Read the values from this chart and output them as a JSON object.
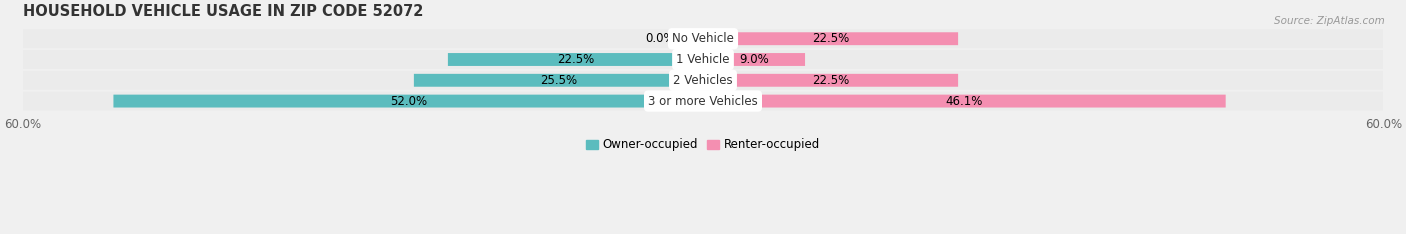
{
  "title": "HOUSEHOLD VEHICLE USAGE IN ZIP CODE 52072",
  "source": "Source: ZipAtlas.com",
  "categories": [
    "No Vehicle",
    "1 Vehicle",
    "2 Vehicles",
    "3 or more Vehicles"
  ],
  "owner_values": [
    0.0,
    22.5,
    25.5,
    52.0
  ],
  "renter_values": [
    22.5,
    9.0,
    22.5,
    46.1
  ],
  "owner_color": "#5bbcbe",
  "renter_color": "#f48fb1",
  "axis_limit": 60.0,
  "background_color": "#f0f0f0",
  "bar_background": "#e0e0e0",
  "row_background": "#ebebeb",
  "title_fontsize": 10.5,
  "label_fontsize": 8.5,
  "axis_fontsize": 8.5,
  "source_fontsize": 7.5
}
